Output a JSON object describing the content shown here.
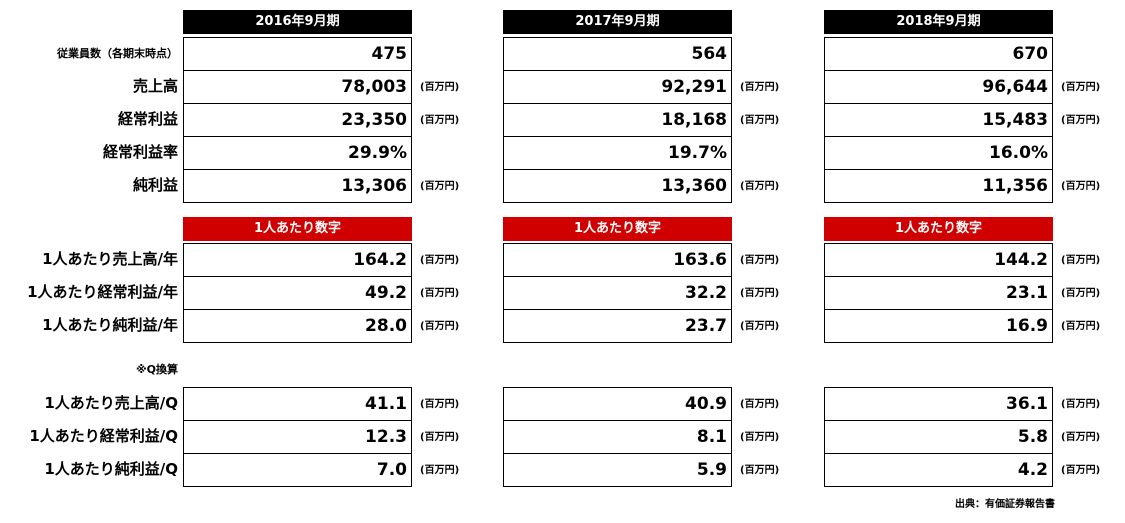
{
  "periods": [
    "2016年9月期",
    "2017年9月期",
    "2018年9月期"
  ],
  "sections": [
    {
      "rows": [
        {
          "label": "従業員数（各期末時点）",
          "values": [
            "475",
            "564",
            "670"
          ]
        },
        {
          "label": "売上高",
          "values": [
            "78,003",
            "92,291",
            "96,644"
          ],
          "unit": "(百万円)"
        },
        {
          "label": "経常利益",
          "values": [
            "23,350",
            "18,168",
            "15,483"
          ],
          "unit": "(百万円)"
        },
        {
          "label": "経常利益率",
          "values": [
            "29.9%",
            "19.7%",
            "16.0%"
          ]
        },
        {
          "label": "純利益",
          "values": [
            "13,306",
            "13,360",
            "11,356"
          ],
          "unit": "(百万円)"
        }
      ]
    },
    {
      "header": "1人あたり数字",
      "rows": [
        {
          "label": "1人あたり売上高/年",
          "values": [
            "164.2",
            "163.6",
            "144.2"
          ],
          "unit": "(百万円)"
        },
        {
          "label": "1人あたり経常利益/年",
          "values": [
            "49.2",
            "32.2",
            "23.1"
          ],
          "unit": "(百万円)"
        },
        {
          "label": "1人あたり純利益/年",
          "values": [
            "28.0",
            "23.7",
            "16.9"
          ],
          "unit": "(百万円)"
        }
      ]
    },
    {
      "note": "※Q換算",
      "rows": [
        {
          "label": "1人あたり売上高/Q",
          "values": [
            "41.1",
            "40.9",
            "36.1"
          ],
          "unit": "(百万円)"
        },
        {
          "label": "1人あたり経常利益/Q",
          "values": [
            "12.3",
            "8.1",
            "5.8"
          ],
          "unit": "(百万円)"
        },
        {
          "label": "1人あたり純利益/Q",
          "values": [
            "7.0",
            "5.9",
            "4.2"
          ],
          "unit": "(百万円)"
        }
      ]
    }
  ],
  "source": "出典：有価証券報告書"
}
